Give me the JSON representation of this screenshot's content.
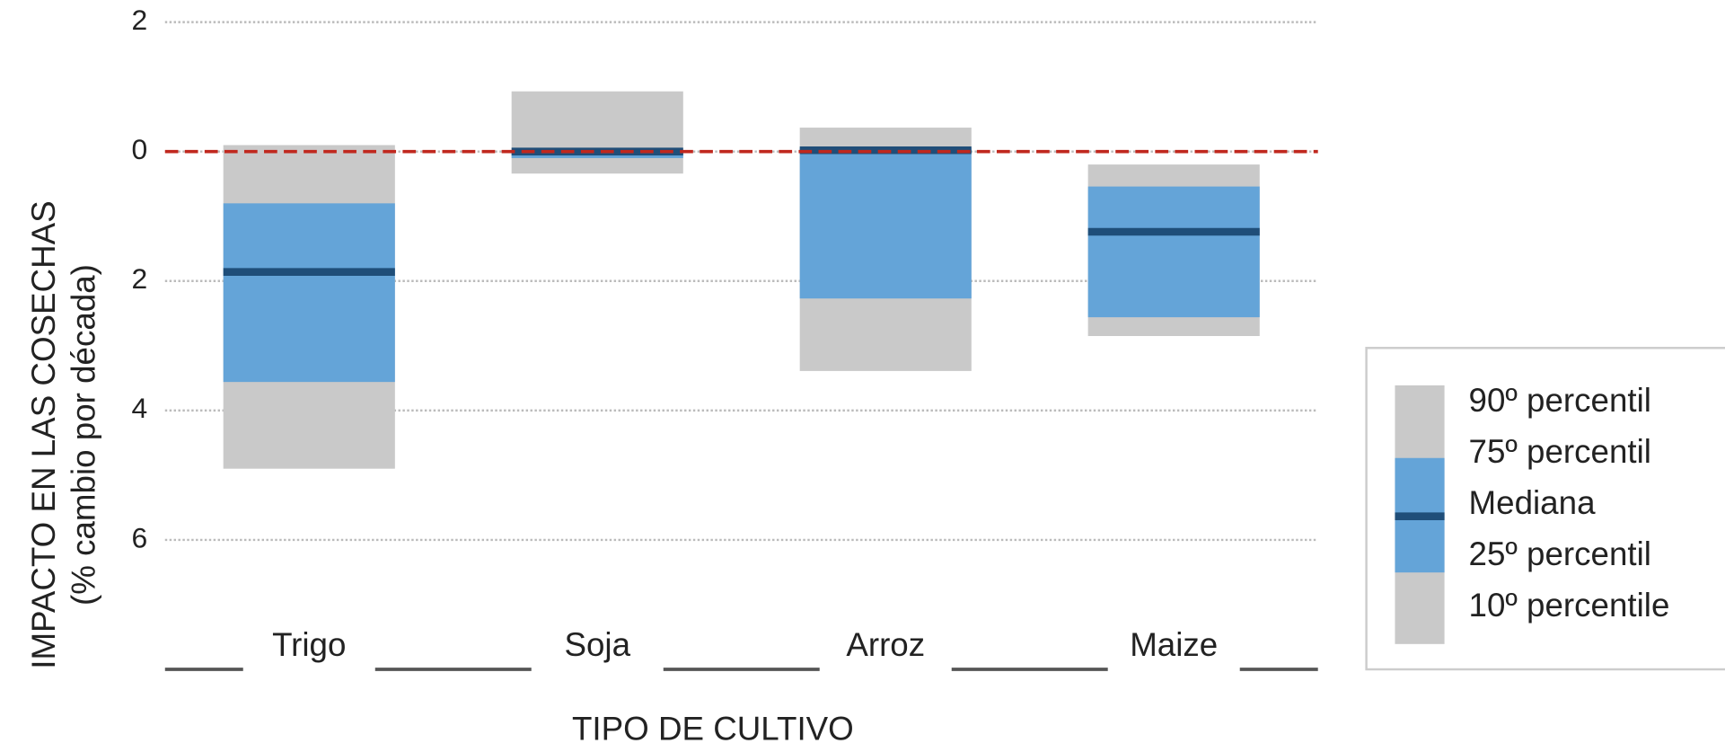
{
  "chart_data": {
    "type": "box",
    "y_label_lines": [
      "IMPACTO EN LAS COSECHAS",
      "(% cambio por década)"
    ],
    "x_label": "TIPO DE CULTIVO",
    "categories": [
      "Trigo",
      "Soja",
      "Arroz",
      "Maize"
    ],
    "p90": [
      0.1,
      0.93,
      0.37,
      -0.2
    ],
    "p75": [
      -0.8,
      0.02,
      0.05,
      -0.54
    ],
    "median": [
      -1.86,
      0,
      0.02,
      -1.24
    ],
    "p25": [
      -3.56,
      -0.1,
      -2.27,
      -2.56
    ],
    "p10": [
      -4.9,
      -0.34,
      -3.39,
      -2.85
    ],
    "legend": [
      "90º percentil",
      "75º percentil",
      "Mediana",
      "25º percentil",
      "10º percentile"
    ],
    "outer_color": "#c9c9c9",
    "inner_color": "#64a4d8",
    "median_color": "#1f4e79",
    "zero_line_color": "#c0281e",
    "ylim": [
      -8,
      2
    ],
    "yticks": [
      2,
      0,
      {
        "value": -2,
        "label": "2"
      },
      {
        "value": -4,
        "label": "4"
      },
      {
        "value": -6,
        "label": "6"
      }
    ],
    "grid": true
  }
}
